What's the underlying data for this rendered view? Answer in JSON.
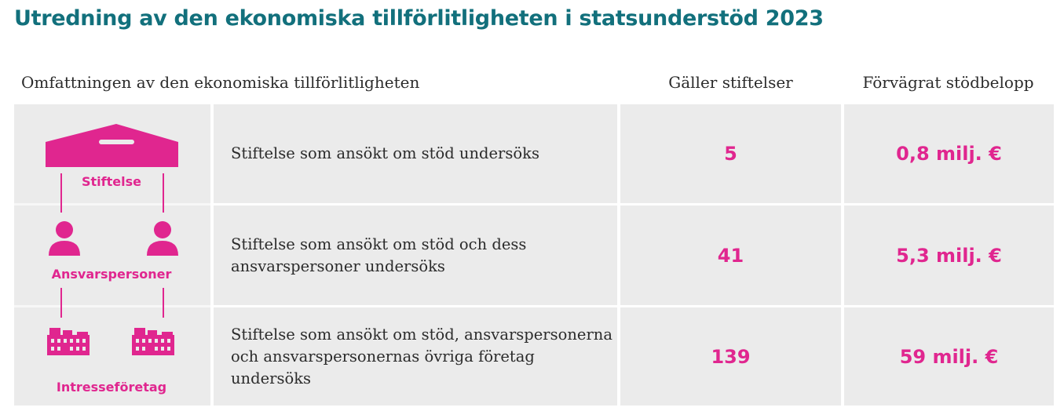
{
  "title": "Utredning av den ekonomiska tillförlitligheten i statsunderstöd 2023",
  "headers": {
    "scope": "Omfattningen av den ekonomiska tillförlitligheten",
    "count": "Gäller stiftelser",
    "amount": "Förvägrat stödbelopp"
  },
  "levels": {
    "foundation": "Stiftelse",
    "responsible_persons": "Ansvarspersoner",
    "affiliated_companies": "Intresseföretag"
  },
  "rows": [
    {
      "description": "Stiftelse som ansökt om stöd undersöks",
      "count": "5",
      "amount": "0,8 milj. €"
    },
    {
      "description": "Stiftelse som ansökt om stöd och dess ansvarspersoner undersöks",
      "count": "41",
      "amount": "5,3 milj. €"
    },
    {
      "description": "Stiftelse som ansökt om stöd, ansvarspersonerna och ansvarspersonernas övriga företag undersöks",
      "count": "139",
      "amount": "59 milj. €"
    }
  ],
  "colors": {
    "title": "#12707c",
    "accent": "#e0268f",
    "cell_bg": "#ebebeb"
  }
}
